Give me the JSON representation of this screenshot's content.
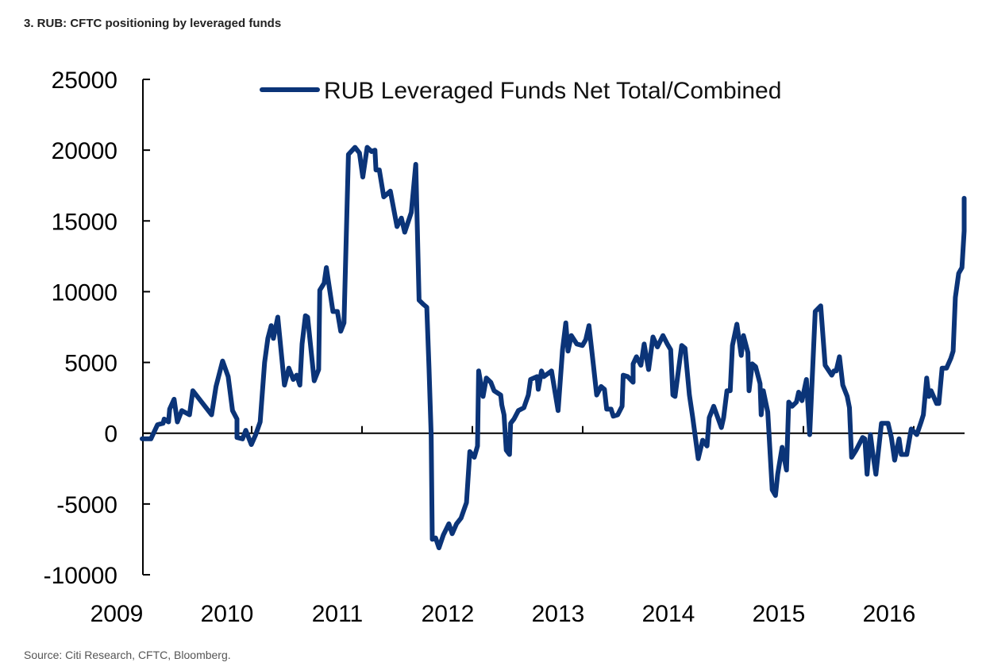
{
  "chart_data": {
    "type": "line",
    "title": "3. RUB: CFTC positioning by leveraged funds",
    "source": "Source: Citi Research, CFTC, Bloomberg.",
    "xlabel": "",
    "ylabel": "",
    "xlim": [
      2009,
      2016.7
    ],
    "ylim": [
      -10000,
      25000
    ],
    "x_ticks": [
      "2009",
      "2010",
      "2011",
      "2012",
      "2013",
      "2014",
      "2015",
      "2016"
    ],
    "y_ticks": [
      "25000",
      "20000",
      "15000",
      "10000",
      "5000",
      "0",
      "-5000",
      "-10000"
    ],
    "grid": false,
    "legend_position": "top",
    "colors": {
      "series": "#0b3478",
      "axis": "#000000"
    },
    "series": [
      {
        "name": "RUB Leveraged Funds Net Total/Combined",
        "x": [
          2009.23,
          2009.31,
          2009.37,
          2009.42,
          2009.43,
          2009.47,
          2009.48,
          2009.52,
          2009.55,
          2009.59,
          2009.66,
          2009.69,
          2009.86,
          2009.9,
          2009.96,
          2010.01,
          2010.05,
          2010.09,
          2010.09,
          2010.14,
          2010.17,
          2010.22,
          2010.26,
          2010.3,
          2010.34,
          2010.37,
          2010.4,
          2010.42,
          2010.46,
          2010.52,
          2010.56,
          2010.6,
          2010.63,
          2010.66,
          2010.68,
          2010.71,
          2010.73,
          2010.79,
          2010.83,
          2010.84,
          2010.88,
          2010.9,
          2010.94,
          2010.96,
          2011.0,
          2011.03,
          2011.06,
          2011.1,
          2011.16,
          2011.2,
          2011.23,
          2011.27,
          2011.31,
          2011.34,
          2011.35,
          2011.38,
          2011.42,
          2011.48,
          2011.54,
          2011.58,
          2011.61,
          2011.67,
          2011.71,
          2011.74,
          2011.78,
          2011.81,
          2011.83,
          2011.85,
          2011.86,
          2011.89,
          2011.92,
          2011.96,
          2012.01,
          2012.04,
          2012.08,
          2012.12,
          2012.17,
          2012.2,
          2012.24,
          2012.27,
          2012.28,
          2012.32,
          2012.35,
          2012.39,
          2012.42,
          2012.48,
          2012.49,
          2012.51,
          2012.53,
          2012.56,
          2012.57,
          2012.6,
          2012.64,
          2012.69,
          2012.73,
          2012.75,
          2012.81,
          2012.82,
          2012.85,
          2012.87,
          2012.94,
          2013.0,
          2013.04,
          2013.07,
          2013.09,
          2013.12,
          2013.17,
          2013.22,
          2013.25,
          2013.28,
          2013.32,
          2013.35,
          2013.39,
          2013.42,
          2013.44,
          2013.48,
          2013.5,
          2013.54,
          2013.58,
          2013.59,
          2013.63,
          2013.68,
          2013.68,
          2013.71,
          2013.75,
          2013.78,
          2013.82,
          2013.86,
          2013.9,
          2013.95,
          2013.99,
          2014.02,
          2014.04,
          2014.06,
          2014.12,
          2014.15,
          2014.19,
          2014.22,
          2014.27,
          2014.31,
          2014.35,
          2014.37,
          2014.41,
          2014.48,
          2014.5,
          2014.53,
          2014.56,
          2014.58,
          2014.62,
          2014.66,
          2014.68,
          2014.72,
          2014.73,
          2014.76,
          2014.79,
          2014.83,
          2014.84,
          2014.86,
          2014.9,
          2014.94,
          2014.97,
          2014.99,
          2015.03,
          2015.07,
          2015.09,
          2015.12,
          2015.16,
          2015.18,
          2015.21,
          2015.25,
          2015.28,
          2015.33,
          2015.38,
          2015.42,
          2015.48,
          2015.5,
          2015.52,
          2015.55,
          2015.58,
          2015.62,
          2015.64,
          2015.66,
          2015.7,
          2015.76,
          2015.78,
          2015.8,
          2015.83,
          2015.85,
          2015.88,
          2015.93,
          2015.99,
          2016.02,
          2016.05,
          2016.09,
          2016.11,
          2016.16,
          2016.2,
          2016.25,
          2016.29,
          2016.31,
          2016.34,
          2016.36,
          2016.38,
          2016.43,
          2016.45,
          2016.48,
          2016.52,
          2016.56,
          2016.58,
          2016.6,
          2016.63,
          2016.66,
          2016.68,
          2016.68
        ],
        "y": [
          -400,
          -400,
          600,
          700,
          1000,
          800,
          1700,
          2400,
          800,
          1600,
          1300,
          3000,
          1300,
          3300,
          5100,
          4000,
          1600,
          1000,
          -300,
          -400,
          200,
          -800,
          -100,
          800,
          5000,
          6700,
          7600,
          6700,
          8200,
          3400,
          4600,
          3800,
          4100,
          3400,
          6300,
          8300,
          8200,
          3700,
          4500,
          10100,
          10600,
          11700,
          9600,
          8600,
          8600,
          7200,
          7800,
          19700,
          20200,
          19800,
          18100,
          20200,
          19900,
          20000,
          18600,
          18600,
          16700,
          17100,
          14600,
          15200,
          14200,
          15600,
          19000,
          9400,
          9100,
          8900,
          4600,
          -100,
          -7500,
          -7400,
          -8100,
          -7200,
          -6400,
          -7100,
          -6400,
          -6000,
          -4900,
          -1300,
          -1700,
          -900,
          4400,
          2600,
          3900,
          3600,
          3000,
          2700,
          2000,
          1300,
          -1200,
          -1500,
          700,
          1000,
          1600,
          1800,
          2700,
          3800,
          4000,
          3100,
          4400,
          4000,
          4400,
          1600,
          5900,
          7800,
          5800,
          6900,
          6300,
          6200,
          6600,
          7600,
          4800,
          2700,
          3300,
          3100,
          1700,
          1700,
          1200,
          1300,
          1900,
          4100,
          4000,
          3600,
          4900,
          5400,
          4800,
          6300,
          4500,
          6800,
          6100,
          6900,
          6300,
          5900,
          2700,
          2600,
          6200,
          6000,
          2700,
          1100,
          -1800,
          -500,
          -900,
          1100,
          1900,
          400,
          1100,
          3000,
          3000,
          6200,
          7700,
          5500,
          6900,
          5700,
          3000,
          4900,
          4700,
          3500,
          1300,
          3000,
          1500,
          -4000,
          -4400,
          -2900,
          -1000,
          -2600,
          2200,
          1900,
          2200,
          2900,
          2300,
          3800,
          -100,
          8600,
          9000,
          4800,
          4100,
          4400,
          4400,
          5400,
          3400,
          2600,
          1800,
          -1700,
          -1200,
          -300,
          -400,
          -2900,
          -100,
          -1300,
          -2900,
          700,
          700,
          -300,
          -1900,
          -400,
          -1500,
          -1500,
          300,
          -100,
          800,
          1300,
          3900,
          2600,
          3000,
          2100,
          2100,
          4600,
          4600,
          5300,
          5800,
          9600,
          11300,
          11700,
          14300,
          16600
        ]
      }
    ]
  }
}
